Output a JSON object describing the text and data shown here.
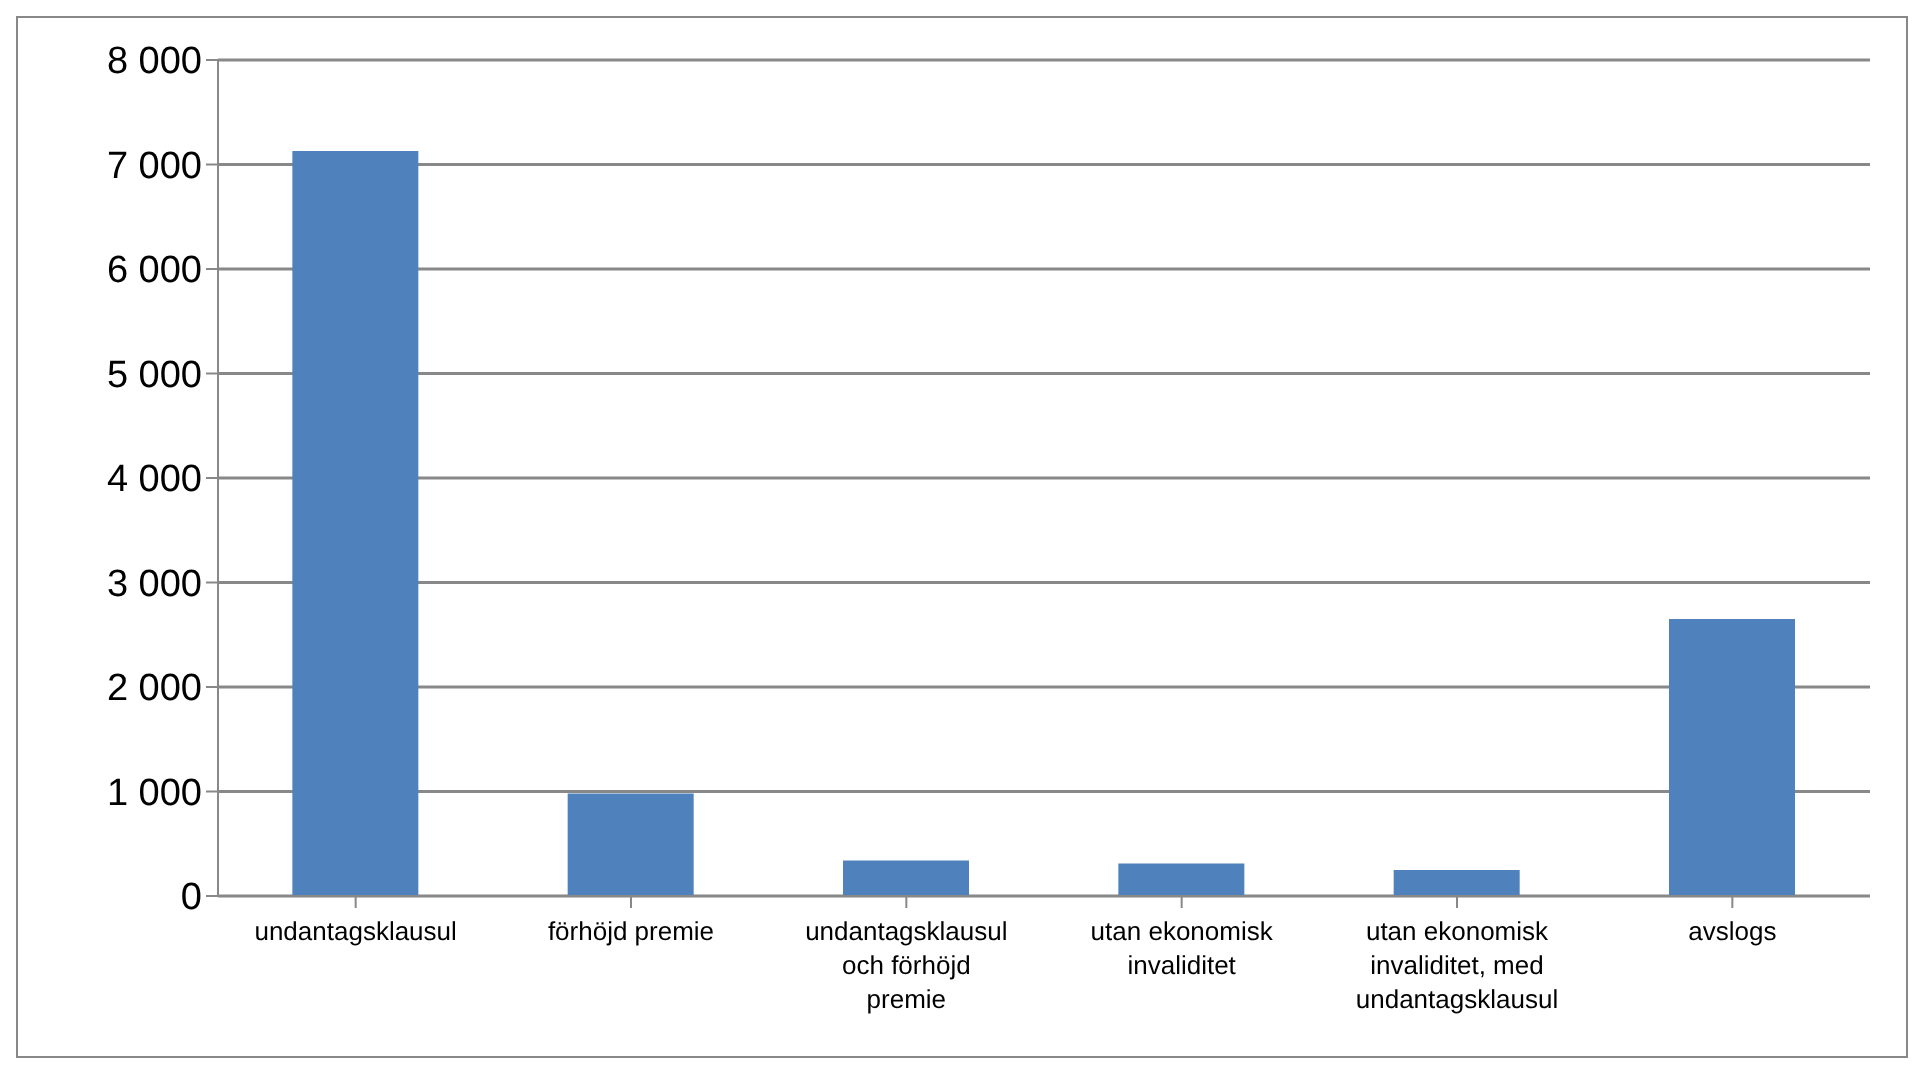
{
  "chart_data": {
    "type": "bar",
    "categories": [
      "undantagsklausul",
      "förhöjd premie",
      "undantagsklausul och förhöjd premie",
      "utan ekonomisk invaliditet",
      "utan ekonomisk invaliditet, med undantagsklausul",
      "avslogs"
    ],
    "values": [
      7130,
      980,
      340,
      310,
      250,
      2650
    ],
    "color": "#4f81bd",
    "ylim": [
      0,
      8000
    ],
    "yticks": [
      {
        "value": 0,
        "label": "0"
      },
      {
        "value": 1000,
        "label": "1 000"
      },
      {
        "value": 2000,
        "label": "2 000"
      },
      {
        "value": 3000,
        "label": "3 000"
      },
      {
        "value": 4000,
        "label": "4 000"
      },
      {
        "value": 5000,
        "label": "5 000"
      },
      {
        "value": 6000,
        "label": "6 000"
      },
      {
        "value": 7000,
        "label": "7 000"
      },
      {
        "value": 8000,
        "label": "8 000"
      }
    ],
    "grid": "y",
    "legend": false
  }
}
